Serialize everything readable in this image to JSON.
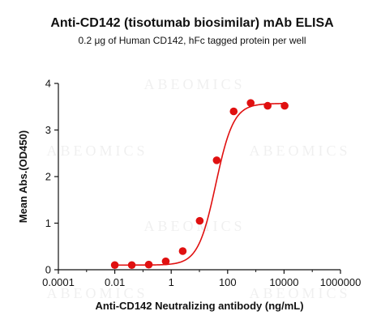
{
  "chart_data": {
    "type": "scatter",
    "title": "Anti-CD142 (tisotumab biosimilar) mAb ELISA",
    "subtitle": "0.2 μg of Human CD142, hFc tagged protein per well",
    "xlabel": "Anti-CD142 Neutralizing antibody (ng/mL)",
    "ylabel": "Mean Abs.(OD450)",
    "x_scale": "log10",
    "xlim": [
      0.0001,
      1000000
    ],
    "ylim": [
      0,
      4
    ],
    "x_ticks": [
      "0.0001",
      "0.01",
      "1",
      "100",
      "10000",
      "1000000"
    ],
    "y_ticks": [
      "0",
      "1",
      "2",
      "3",
      "4"
    ],
    "grid": false,
    "legend": false,
    "point_color": "#e01010",
    "curve_color": "#e01010",
    "watermark": "ABEOMICS",
    "series": [
      {
        "x": [
          0.01,
          0.04,
          0.16,
          0.64,
          2.56,
          10.24,
          40.96,
          163.84,
          655.36,
          2621.44,
          10485.76
        ],
        "y": [
          0.1,
          0.1,
          0.11,
          0.18,
          0.4,
          1.05,
          2.35,
          3.4,
          3.58,
          3.52,
          3.52
        ]
      }
    ],
    "fit_curve": {
      "bottom": 0.1,
      "top": 3.57,
      "ec50": 38,
      "hill": 1.38
    }
  }
}
